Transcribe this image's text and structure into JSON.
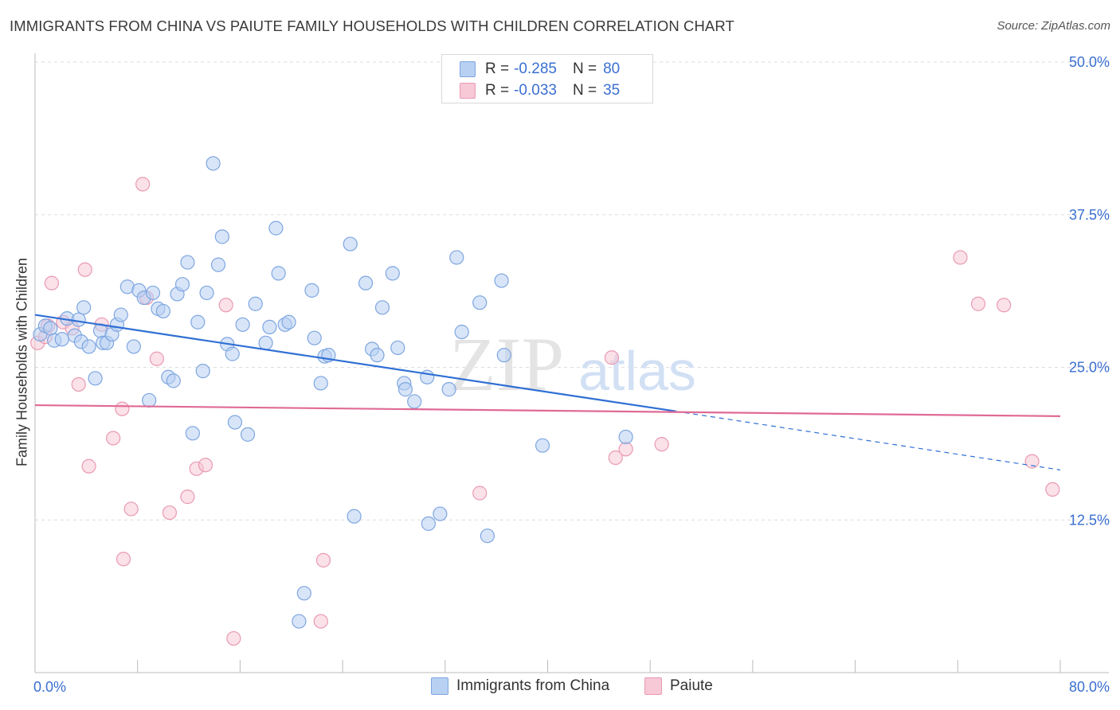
{
  "title": "IMMIGRANTS FROM CHINA VS PAIUTE FAMILY HOUSEHOLDS WITH CHILDREN CORRELATION CHART",
  "source": "Source: ZipAtlas.com",
  "watermark": {
    "zip": "ZIP",
    "atlas": "atlas"
  },
  "legend_top": [
    {
      "r_label": "R =",
      "r_value": "-0.285",
      "n_label": "N =",
      "n_value": "80"
    },
    {
      "r_label": "R =",
      "r_value": "-0.033",
      "n_label": "N =",
      "n_value": "35"
    }
  ],
  "colors": {
    "blue_fill": "#b8d0f2",
    "blue_stroke": "#7ea6e0",
    "blue_line": "#2f6fd4",
    "pink_fill": "#f7c8d6",
    "pink_stroke": "#e99ab3",
    "pink_line": "#e06a96",
    "axis_text": "#3a6fd0",
    "grid": "#dddddd"
  },
  "chart_data": {
    "type": "scatter",
    "title": "IMMIGRANTS FROM CHINA VS PAIUTE FAMILY HOUSEHOLDS WITH CHILDREN CORRELATION CHART",
    "xlabel": "",
    "ylabel": "Family Households with Children",
    "xlim": [
      0,
      80
    ],
    "ylim": [
      0,
      50
    ],
    "x_tick_labels": [
      "0.0%",
      "80.0%"
    ],
    "y_ticks": [
      12.5,
      25.0,
      37.5,
      50.0
    ],
    "y_tick_labels": [
      "12.5%",
      "25.0%",
      "37.5%",
      "50.0%"
    ],
    "grid": true,
    "legend_position": "bottom",
    "series": [
      {
        "name": "Immigrants from China",
        "color": "#7ea6e0",
        "trend": {
          "x": [
            0,
            50
          ],
          "y": [
            29.3,
            21.4
          ],
          "dashed_extension": {
            "x": [
              50,
              80
            ],
            "y": [
              21.4,
              16.6
            ]
          }
        },
        "points": [
          [
            0.4,
            27.7
          ],
          [
            0.8,
            28.4
          ],
          [
            1.2,
            28.2
          ],
          [
            1.5,
            27.2
          ],
          [
            2.1,
            27.3
          ],
          [
            2.5,
            29.0
          ],
          [
            3.1,
            27.6
          ],
          [
            3.4,
            28.9
          ],
          [
            3.6,
            27.1
          ],
          [
            3.8,
            29.9
          ],
          [
            4.2,
            26.7
          ],
          [
            4.7,
            24.1
          ],
          [
            5.1,
            28.0
          ],
          [
            5.3,
            27.0
          ],
          [
            5.6,
            27.0
          ],
          [
            6.0,
            27.7
          ],
          [
            6.4,
            28.5
          ],
          [
            6.7,
            29.3
          ],
          [
            7.2,
            31.6
          ],
          [
            7.7,
            26.7
          ],
          [
            8.1,
            31.3
          ],
          [
            8.5,
            30.7
          ],
          [
            8.9,
            22.3
          ],
          [
            9.2,
            31.1
          ],
          [
            9.6,
            29.8
          ],
          [
            10.0,
            29.6
          ],
          [
            10.4,
            24.2
          ],
          [
            10.8,
            23.9
          ],
          [
            11.1,
            31.0
          ],
          [
            11.5,
            31.8
          ],
          [
            11.9,
            33.6
          ],
          [
            12.3,
            19.6
          ],
          [
            12.7,
            28.7
          ],
          [
            13.1,
            24.7
          ],
          [
            13.4,
            31.1
          ],
          [
            13.9,
            41.7
          ],
          [
            14.3,
            33.4
          ],
          [
            14.6,
            35.7
          ],
          [
            15.0,
            26.9
          ],
          [
            15.4,
            26.1
          ],
          [
            15.6,
            20.5
          ],
          [
            16.2,
            28.5
          ],
          [
            16.6,
            19.5
          ],
          [
            17.2,
            30.2
          ],
          [
            18.0,
            27.0
          ],
          [
            18.3,
            28.3
          ],
          [
            18.8,
            36.4
          ],
          [
            19.0,
            32.7
          ],
          [
            19.5,
            28.5
          ],
          [
            19.8,
            28.7
          ],
          [
            21.0,
            6.5
          ],
          [
            20.6,
            4.2
          ],
          [
            21.6,
            31.3
          ],
          [
            21.8,
            27.4
          ],
          [
            22.3,
            23.7
          ],
          [
            22.6,
            25.9
          ],
          [
            22.9,
            26.0
          ],
          [
            24.6,
            35.1
          ],
          [
            24.9,
            12.8
          ],
          [
            25.8,
            31.9
          ],
          [
            26.3,
            26.5
          ],
          [
            26.7,
            26.0
          ],
          [
            27.1,
            29.9
          ],
          [
            27.9,
            32.7
          ],
          [
            28.3,
            26.6
          ],
          [
            28.8,
            23.7
          ],
          [
            28.9,
            23.2
          ],
          [
            29.6,
            22.2
          ],
          [
            30.6,
            24.2
          ],
          [
            30.7,
            12.2
          ],
          [
            31.6,
            13.0
          ],
          [
            32.3,
            23.2
          ],
          [
            32.9,
            34.0
          ],
          [
            33.3,
            27.9
          ],
          [
            34.7,
            30.3
          ],
          [
            35.3,
            11.2
          ],
          [
            36.4,
            32.1
          ],
          [
            36.6,
            26.0
          ],
          [
            39.6,
            18.6
          ],
          [
            46.1,
            19.3
          ]
        ]
      },
      {
        "name": "Paiute",
        "color": "#e99ab3",
        "trend": {
          "x": [
            0,
            80
          ],
          "y": [
            21.9,
            21.0
          ]
        },
        "points": [
          [
            0.2,
            27.0
          ],
          [
            1.0,
            28.4
          ],
          [
            1.3,
            31.9
          ],
          [
            2.2,
            28.7
          ],
          [
            2.9,
            28.2
          ],
          [
            3.4,
            23.6
          ],
          [
            3.9,
            33.0
          ],
          [
            4.2,
            16.9
          ],
          [
            5.2,
            28.5
          ],
          [
            6.1,
            19.2
          ],
          [
            6.9,
            9.3
          ],
          [
            6.8,
            21.6
          ],
          [
            7.5,
            13.4
          ],
          [
            8.4,
            40.0
          ],
          [
            8.7,
            30.7
          ],
          [
            9.5,
            25.7
          ],
          [
            10.5,
            13.1
          ],
          [
            11.9,
            14.4
          ],
          [
            12.6,
            16.7
          ],
          [
            13.3,
            17.0
          ],
          [
            14.9,
            30.1
          ],
          [
            15.5,
            2.8
          ],
          [
            22.3,
            4.2
          ],
          [
            22.5,
            9.2
          ],
          [
            34.7,
            14.7
          ],
          [
            45.0,
            25.8
          ],
          [
            45.3,
            17.6
          ],
          [
            46.1,
            18.3
          ],
          [
            48.9,
            18.7
          ],
          [
            72.2,
            34.0
          ],
          [
            73.6,
            30.2
          ],
          [
            75.6,
            30.1
          ],
          [
            77.8,
            17.3
          ],
          [
            79.4,
            15.0
          ],
          [
            0.8,
            27.5
          ]
        ]
      }
    ]
  }
}
